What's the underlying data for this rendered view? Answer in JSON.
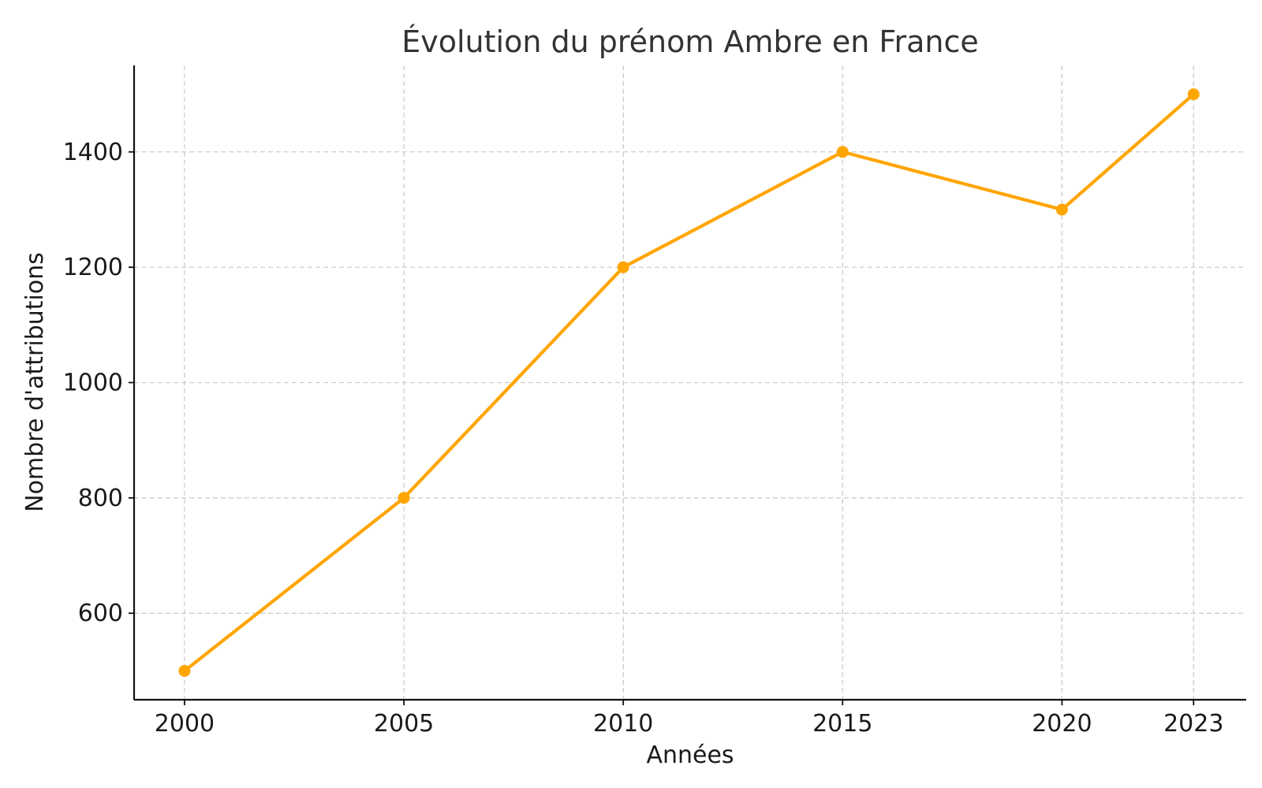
{
  "chart_data": {
    "type": "line",
    "title": "Évolution du prénom Ambre en France",
    "xlabel": "Années",
    "ylabel": "Nombre d'attributions",
    "x": [
      2000,
      2005,
      2010,
      2015,
      2020,
      2023
    ],
    "series": [
      {
        "values": [
          500,
          800,
          1200,
          1400,
          1300,
          1500
        ]
      }
    ],
    "x_ticks": [
      2000,
      2005,
      2010,
      2015,
      2020,
      2023
    ],
    "y_ticks": [
      600,
      800,
      1000,
      1200,
      1400
    ],
    "xlim": [
      1998.85,
      2024.2
    ],
    "ylim": [
      450,
      1550
    ],
    "grid": true,
    "line_color": "#FFA500",
    "marker": "circle"
  }
}
